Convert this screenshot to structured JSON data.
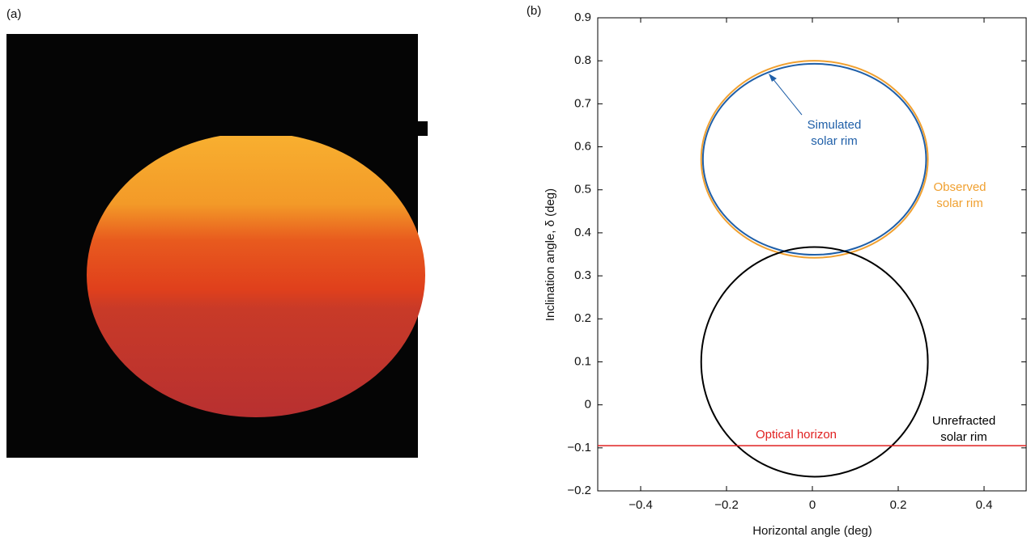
{
  "photo_label": "(a)",
  "chart_data": {
    "type": "ellipse",
    "panel_label": "(b)",
    "x_label": "Horizontal angle (deg)",
    "y_label": "Inclination angle, δ (deg)",
    "xlim": [
      -0.5,
      0.5
    ],
    "ylim": [
      -0.2,
      0.9
    ],
    "xticks": [
      {
        "value": -0.4,
        "label": "−0.4"
      },
      {
        "value": -0.2,
        "label": "−0.2"
      },
      0,
      0.2,
      0.4
    ],
    "yticks": [
      {
        "value": -0.2,
        "label": "−0.2"
      },
      {
        "value": -0.1,
        "label": "−0.1"
      },
      0,
      0.1,
      0.2,
      0.3,
      0.4,
      0.5,
      0.6,
      0.7,
      0.8,
      0.9
    ],
    "series": [
      {
        "label": [
          "Observed",
          "solar rim"
        ],
        "color": "#f0a030",
        "cx": 0.005,
        "cy": 0.571,
        "rx": 0.264,
        "ry": 0.229
      },
      {
        "label": [
          "Simulated",
          "solar rim"
        ],
        "color": "#1f5fa8",
        "cx": 0.005,
        "cy": 0.571,
        "rx": 0.26,
        "ry": 0.222
      },
      {
        "label": [
          "Unrefracted",
          "solar rim"
        ],
        "color": "#000000",
        "cx": 0.005,
        "cy": 0.1,
        "rx": 0.264,
        "ry": 0.267
      }
    ],
    "horizon": {
      "label": "Optical horizon",
      "value": -0.095,
      "color": "#e02020"
    }
  }
}
